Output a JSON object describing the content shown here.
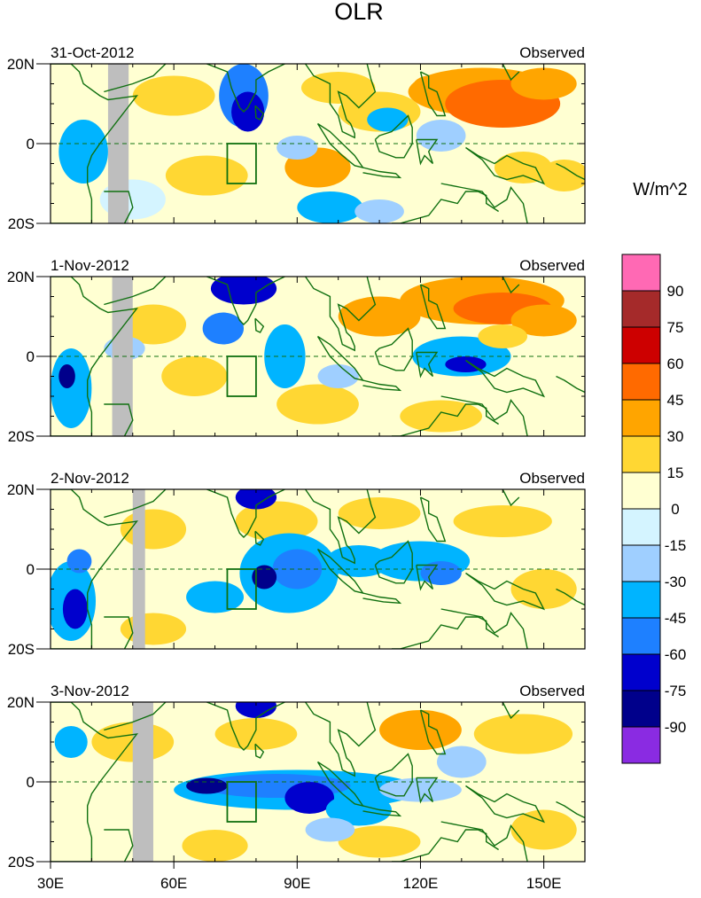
{
  "title": "OLR",
  "units_label": "W/m^2",
  "panels": [
    {
      "date": "31-Oct-2012",
      "source": "Observed"
    },
    {
      "date": "1-Nov-2012",
      "source": "Observed"
    },
    {
      "date": "2-Nov-2012",
      "source": "Observed"
    },
    {
      "date": "3-Nov-2012",
      "source": "Observed"
    }
  ],
  "axes": {
    "lat_labels": [
      "20N",
      "0",
      "20S"
    ],
    "lon_labels": [
      "30E",
      "60E",
      "90E",
      "120E",
      "150E"
    ],
    "lat_range": [
      -20,
      20
    ],
    "lon_range": [
      30,
      160
    ]
  },
  "colorbar": {
    "tick_labels": [
      "90",
      "75",
      "60",
      "45",
      "30",
      "15",
      "0",
      "-15",
      "-30",
      "-45",
      "-60",
      "-75",
      "-90"
    ],
    "colors": [
      "#ff69b4",
      "#a52a2a",
      "#cd0000",
      "#ff6a00",
      "#ffa500",
      "#ffd733",
      "#ffffd2",
      "#d4f4ff",
      "#9fcfff",
      "#00b4ff",
      "#1e80ff",
      "#0000cd",
      "#00008b",
      "#8a2be2"
    ]
  },
  "colors": {
    "coast": "#107010",
    "missing": "#bebebe",
    "background": "#ffffd2"
  }
}
